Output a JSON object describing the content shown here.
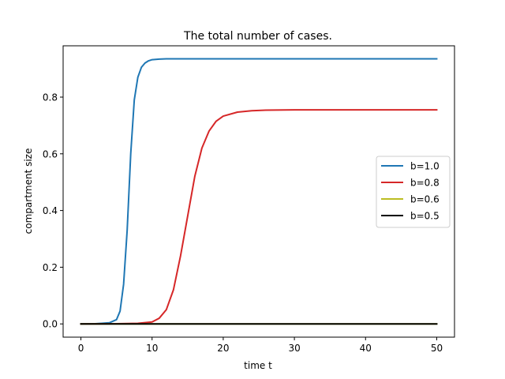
{
  "chart_data": {
    "type": "line",
    "title": "The total number of cases.",
    "xlabel": "time t",
    "ylabel": "compartment size",
    "xlim": [
      -2.5,
      52.5
    ],
    "ylim": [
      -0.0467,
      0.981
    ],
    "xticks": [
      0,
      10,
      20,
      30,
      40,
      50
    ],
    "yticks": [
      0.0,
      0.2,
      0.4,
      0.6,
      0.8
    ],
    "xtick_labels": [
      "0",
      "10",
      "20",
      "30",
      "40",
      "50"
    ],
    "ytick_labels": [
      "0.0",
      "0.2",
      "0.4",
      "0.6",
      "0.8"
    ],
    "grid": false,
    "legend_position": "center-right",
    "series": [
      {
        "name": "b=1.0",
        "color": "#1f77b4",
        "x": [
          0,
          2,
          4,
          5,
          5.5,
          6,
          6.5,
          7,
          7.5,
          8,
          8.5,
          9,
          9.5,
          10,
          11,
          12,
          14,
          20,
          30,
          40,
          50
        ],
        "y": [
          0,
          0.0005,
          0.004,
          0.015,
          0.045,
          0.14,
          0.33,
          0.6,
          0.79,
          0.87,
          0.905,
          0.92,
          0.928,
          0.932,
          0.934,
          0.935,
          0.935,
          0.935,
          0.935,
          0.935,
          0.935
        ]
      },
      {
        "name": "b=0.8",
        "color": "#d62728",
        "x": [
          0,
          5,
          8,
          10,
          11,
          12,
          13,
          14,
          15,
          16,
          17,
          18,
          19,
          20,
          22,
          24,
          26,
          30,
          35,
          40,
          50
        ],
        "y": [
          0,
          0.0005,
          0.002,
          0.007,
          0.02,
          0.05,
          0.12,
          0.24,
          0.38,
          0.52,
          0.62,
          0.68,
          0.715,
          0.733,
          0.747,
          0.752,
          0.754,
          0.755,
          0.755,
          0.755,
          0.755
        ]
      },
      {
        "name": "b=0.6",
        "color": "#bcbd22",
        "x": [
          0,
          50
        ],
        "y": [
          0,
          0
        ]
      },
      {
        "name": "b=0.5",
        "color": "#000000",
        "x": [
          0,
          50
        ],
        "y": [
          0,
          0
        ]
      }
    ]
  }
}
